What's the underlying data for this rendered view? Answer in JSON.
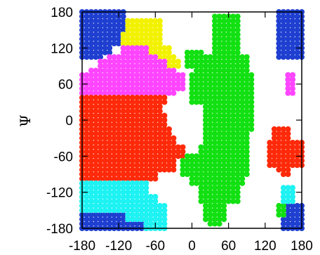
{
  "chart_data": {
    "type": "scatter",
    "title": "",
    "xlabel": "",
    "ylabel": "Ψ",
    "xlim": [
      -180,
      180
    ],
    "ylim": [
      -180,
      180
    ],
    "x_ticks": [
      "-180",
      "-120",
      "-60",
      "0",
      "60",
      "120",
      "180"
    ],
    "y_ticks": [
      "180",
      "120",
      "60",
      "0",
      "-60",
      "-120",
      "-180"
    ],
    "grid": false,
    "legend": "none",
    "grid_step_deg": 7.5,
    "series": [
      {
        "color": "#1e3fd0",
        "points_style": "dense-dots",
        "regions": [
          {
            "psi": [
              145,
              180
            ],
            "phi": [
              -180,
              -110
            ]
          },
          {
            "psi": [
              105,
              145
            ],
            "phi": [
              -180,
              -150
            ]
          },
          {
            "psi": [
              127,
              145
            ],
            "phi": [
              -150,
              -118
            ]
          },
          {
            "psi": [
              108,
              127
            ],
            "phi": [
              -150,
              -135
            ]
          },
          {
            "psi": [
              -180,
              -152
            ],
            "phi": [
              -180,
              -110
            ]
          },
          {
            "psi": [
              -180,
              -165
            ],
            "phi": [
              -110,
              -75
            ]
          },
          {
            "psi": [
              100,
              180
            ],
            "phi": [
              142,
              180
            ]
          },
          {
            "psi": [
              -180,
              -140
            ],
            "phi": [
              148,
              180
            ]
          },
          {
            "psi": [
              64,
              75
            ],
            "phi": [
              155,
              168
            ]
          }
        ]
      },
      {
        "color": "#f2f200",
        "points_style": "dense-dots",
        "regions": [
          {
            "psi": [
              145,
              172
            ],
            "phi": [
              -110,
              -50
            ]
          },
          {
            "psi": [
              120,
              145
            ],
            "phi": [
              -118,
              -48
            ]
          },
          {
            "psi": [
              110,
              120
            ],
            "phi": [
              -70,
              -35
            ]
          },
          {
            "psi": [
              100,
              110
            ],
            "phi": [
              -55,
              -28
            ]
          },
          {
            "psi": [
              88,
              100
            ],
            "phi": [
              -40,
              -20
            ]
          }
        ]
      },
      {
        "color": "#ff45ff",
        "points_style": "dense-dots",
        "regions": [
          {
            "psi": [
              110,
              122
            ],
            "phi": [
              -118,
              -70
            ]
          },
          {
            "psi": [
              100,
              110
            ],
            "phi": [
              -135,
              -55
            ]
          },
          {
            "psi": [
              88,
              100
            ],
            "phi": [
              -150,
              -40
            ]
          },
          {
            "psi": [
              75,
              88
            ],
            "phi": [
              -165,
              -30
            ]
          },
          {
            "psi": [
              48,
              75
            ],
            "phi": [
              -180,
              -12
            ]
          },
          {
            "psi": [
              40,
              48
            ],
            "phi": [
              -180,
              -30
            ]
          },
          {
            "psi": [
              40,
              75
            ],
            "phi": [
              155,
              168
            ]
          }
        ]
      },
      {
        "color": "#ff2a0a",
        "points_style": "dense-dots",
        "regions": [
          {
            "psi": [
              30,
              40
            ],
            "phi": [
              -180,
              -40
            ]
          },
          {
            "psi": [
              10,
              30
            ],
            "phi": [
              -180,
              -50
            ]
          },
          {
            "psi": [
              -10,
              10
            ],
            "phi": [
              -180,
              -45
            ]
          },
          {
            "psi": [
              -30,
              -10
            ],
            "phi": [
              -180,
              -32
            ]
          },
          {
            "psi": [
              -60,
              -30
            ],
            "phi": [
              -180,
              -25
            ]
          },
          {
            "psi": [
              -85,
              -60
            ],
            "phi": [
              -180,
              -30
            ]
          },
          {
            "psi": [
              -100,
              -85
            ],
            "phi": [
              -180,
              -55
            ]
          },
          {
            "psi": [
              -60,
              -40
            ],
            "phi": [
              -25,
              -15
            ]
          },
          {
            "psi": [
              -45,
              -35
            ],
            "phi": [
              138,
              155
            ]
          },
          {
            "psi": [
              -35,
              -15
            ],
            "phi": [
              128,
              162
            ]
          },
          {
            "psi": [
              -75,
              -35
            ],
            "phi": [
              125,
              180
            ]
          },
          {
            "psi": [
              -85,
              -75
            ],
            "phi": [
              140,
              162
            ]
          },
          {
            "psi": [
              -95,
              -85
            ],
            "phi": [
              148,
              158
            ]
          }
        ]
      },
      {
        "color": "#12e012",
        "points_style": "dense-dots",
        "regions": [
          {
            "psi": [
              90,
              176
            ],
            "phi": [
              32,
              75
            ]
          },
          {
            "psi": [
              60,
              110
            ],
            "phi": [
              5,
              95
            ]
          },
          {
            "psi": [
              90,
              115
            ],
            "phi": [
              -10,
              15
            ]
          },
          {
            "psi": [
              30,
              75
            ],
            "phi": [
              -5,
              98
            ]
          },
          {
            "psi": [
              -15,
              30
            ],
            "phi": [
              22,
              100
            ]
          },
          {
            "psi": [
              -40,
              -15
            ],
            "phi": [
              22,
              96
            ]
          },
          {
            "psi": [
              -55,
              -40
            ],
            "phi": [
              8,
              92
            ]
          },
          {
            "psi": [
              -65,
              -55
            ],
            "phi": [
              -8,
              92
            ]
          },
          {
            "psi": [
              -90,
              -65
            ],
            "phi": [
              -15,
              90
            ]
          },
          {
            "psi": [
              -110,
              -90
            ],
            "phi": [
              -5,
              85
            ]
          },
          {
            "psi": [
              -135,
              -110
            ],
            "phi": [
              10,
              75
            ]
          },
          {
            "psi": [
              -165,
              -135
            ],
            "phi": [
              20,
              55
            ]
          },
          {
            "psi": [
              -175,
              -165
            ],
            "phi": [
              25,
              48
            ]
          },
          {
            "psi": [
              -160,
              -140
            ],
            "phi": [
              140,
              150
            ]
          }
        ]
      },
      {
        "color": "#1ef2f2",
        "points_style": "dense-dots",
        "regions": [
          {
            "psi": [
              -125,
              -100
            ],
            "phi": [
              -180,
              -70
            ]
          },
          {
            "psi": [
              -140,
              -125
            ],
            "phi": [
              -180,
              -55
            ]
          },
          {
            "psi": [
              -152,
              -140
            ],
            "phi": [
              -180,
              -45
            ]
          },
          {
            "psi": [
              -165,
              -152
            ],
            "phi": [
              -110,
              -40
            ]
          },
          {
            "psi": [
              -180,
              -165
            ],
            "phi": [
              -75,
              -45
            ]
          },
          {
            "psi": [
              -128,
              -110
            ],
            "phi": [
              148,
              172
            ]
          },
          {
            "psi": [
              -140,
              -128
            ],
            "phi": [
              150,
              165
            ]
          }
        ]
      }
    ]
  }
}
